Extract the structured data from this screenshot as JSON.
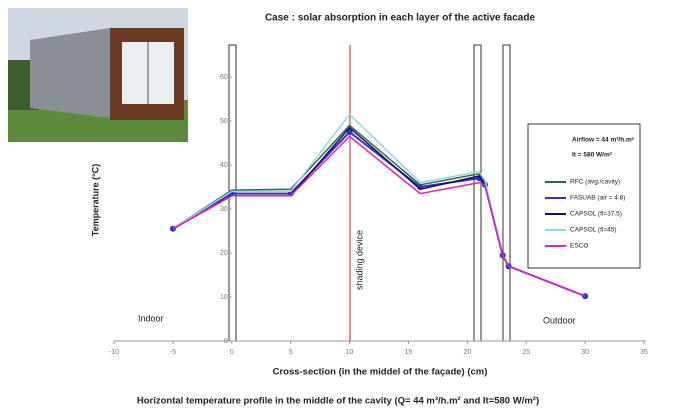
{
  "chart_data": {
    "type": "line",
    "title": "Case :  solar absorption in each layer of the active facade",
    "x_label": "Cross-section (in the middel of the façade) (cm)",
    "y_label": "Temperature (°C)",
    "caption": "Horizontal temperature profile in the middle of the cavity (Q= 44 m³/h.m² and It=580 W/m²)",
    "annotations": [
      "Indoor",
      "Outdoor",
      "shading device"
    ],
    "legend_header": [
      "Airflow = 44 m³/h.m²",
      "It = 580 W/m²"
    ],
    "x": [
      -5,
      0,
      5,
      10,
      16,
      21,
      21.5,
      23,
      23.5,
      30
    ],
    "series": [
      {
        "name": "RFC (avg./cavity)",
        "color": "#2e6b3a",
        "values": [
          25.5,
          34.3,
          34.5,
          49,
          35.5,
          38,
          36,
          19.5,
          17,
          10.2
        ]
      },
      {
        "name": "FASUAB (air = 4.8)",
        "color": "#3030c8",
        "marker": "circle",
        "values": [
          25.5,
          33.5,
          33.5,
          47.5,
          35,
          37,
          35.5,
          19.5,
          17,
          10.2
        ]
      },
      {
        "name": "CAPSOL (fl=37.5)",
        "color": "#10106a",
        "values": [
          25.5,
          33,
          33,
          48.5,
          34.5,
          37.5,
          35.5,
          19.5,
          17,
          10.2
        ]
      },
      {
        "name": "CAPSOL (fl=45)",
        "color": "#8fd8e0",
        "values": [
          25.5,
          34,
          34,
          51.5,
          36,
          38.5,
          36.5,
          19.5,
          17,
          10.2
        ]
      },
      {
        "name": "ESCO",
        "color": "#e020c0",
        "values": [
          25.5,
          33,
          33,
          46.5,
          33.5,
          36,
          35.5,
          19.5,
          17,
          10.2
        ]
      }
    ],
    "xlim": [
      -10,
      35
    ],
    "xticks": [
      -10,
      -5,
      0,
      5,
      10,
      15,
      20,
      25,
      30,
      35
    ],
    "ylim": [
      0,
      60
    ],
    "yticks": [
      0,
      10,
      20,
      30,
      40,
      50,
      60
    ]
  }
}
